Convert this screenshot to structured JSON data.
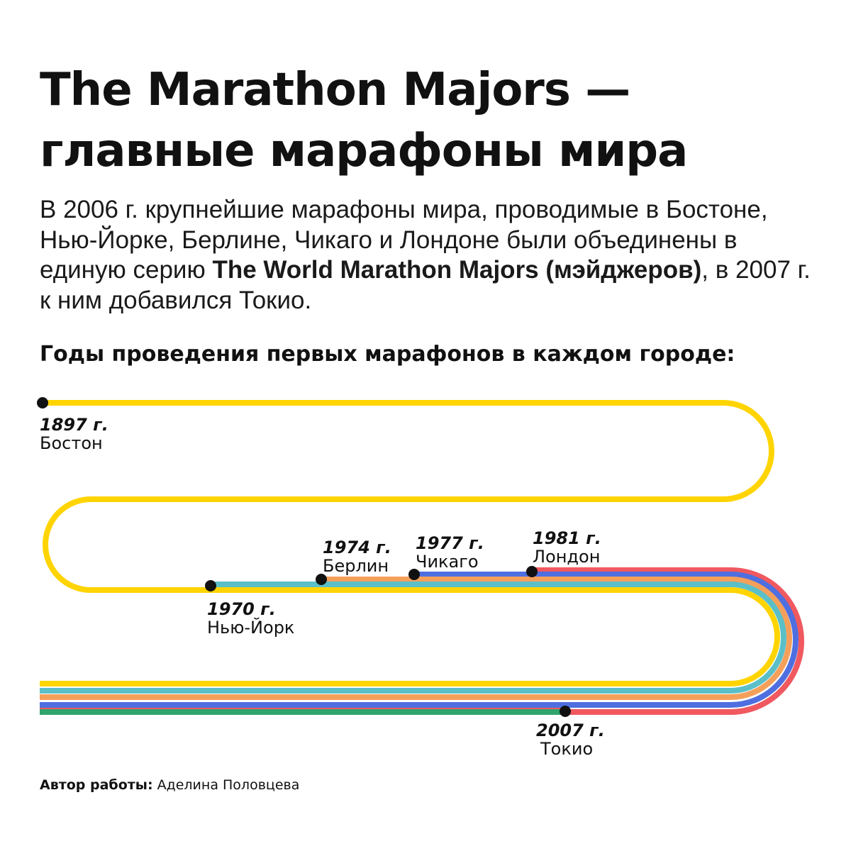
{
  "title": {
    "line1": "The Marathon Majors —",
    "line2": "главные марафоны мира"
  },
  "intro": {
    "part1": "В 2006 г. крупнейшие марафоны мира, проводимые в Бостоне, Нью-Йорке, Берлине, Чикаго и Лондоне были объединены в единую серию ",
    "bold": "The World Marathon Majors (мэйджеров)",
    "part2": ", в 2007 г. к ним добавился Токио."
  },
  "subtitle": "Годы проведения первых марафонов в каждом городе:",
  "colors": {
    "boston": "#FFD400",
    "new_york": "#5BBFC8",
    "berlin": "#F5A05A",
    "chicago": "#4F6FE0",
    "london": "#F0595F",
    "tokyo": "#2FA36B",
    "dot": "#111111"
  },
  "milestones": [
    {
      "year": "1897 г.",
      "city": "Бостон"
    },
    {
      "year": "1970 г.",
      "city": "Нью-Йорк"
    },
    {
      "year": "1974 г.",
      "city": "Берлин"
    },
    {
      "year": "1977 г.",
      "city": "Чикаго"
    },
    {
      "year": "1981 г.",
      "city": "Лондон"
    },
    {
      "year": "2007 г.",
      "city": "Токио"
    }
  ],
  "author": {
    "label": "Автор работы:",
    "name": " Аделина Половцева"
  }
}
